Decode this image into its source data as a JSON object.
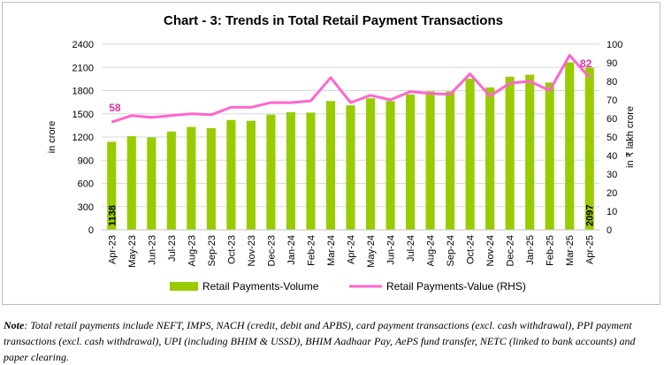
{
  "chart_data": {
    "type": "bar+line",
    "title": "Chart - 3: Trends in Total Retail Payment Transactions",
    "ylabel_left": "in crore",
    "ylabel_right": "in ₹ lakh crore",
    "ylim_left": [
      0,
      2400
    ],
    "yticks_left": [
      0,
      300,
      600,
      900,
      1200,
      1500,
      1800,
      2100,
      2400
    ],
    "ylim_right": [
      0,
      100
    ],
    "yticks_right": [
      0,
      10,
      20,
      30,
      40,
      50,
      60,
      70,
      80,
      90,
      100
    ],
    "grid": true,
    "legend_position": "bottom",
    "categories": [
      "Apr-23",
      "May-23",
      "Jun-23",
      "Jul-23",
      "Aug-23",
      "Sep-23",
      "Oct-23",
      "Nov-23",
      "Dec-23",
      "Jan-24",
      "Feb-24",
      "Mar-24",
      "Apr-24",
      "May-24",
      "Jun-24",
      "Jul-24",
      "Aug-24",
      "Sep-24",
      "Oct-24",
      "Nov-24",
      "Dec-24",
      "Jan-25",
      "Feb-25",
      "Mar-25",
      "Apr-25"
    ],
    "series": [
      {
        "name": "Retail Payments-Volume",
        "type": "bar",
        "axis": "left",
        "color": "#99cc00",
        "values": [
          1138,
          1210,
          1195,
          1270,
          1330,
          1315,
          1420,
          1410,
          1490,
          1520,
          1515,
          1665,
          1610,
          1700,
          1665,
          1750,
          1790,
          1790,
          1955,
          1840,
          1980,
          2005,
          1905,
          2165,
          2097
        ]
      },
      {
        "name": "Retail Payments-Value (RHS)",
        "type": "line",
        "axis": "right",
        "color": "#ff66cc",
        "values": [
          58,
          61.5,
          60.5,
          61.5,
          62.5,
          62,
          66,
          66,
          68.5,
          68.5,
          69.5,
          82,
          68.5,
          72.5,
          70,
          74.5,
          73.5,
          73,
          84,
          72,
          79,
          80,
          75,
          94,
          82
        ]
      }
    ],
    "data_labels": {
      "volume_first": "1138",
      "volume_last": "2097",
      "value_first": "58",
      "value_last": "82"
    }
  },
  "note": {
    "label": "Note",
    "text": ": Total retail payments include NEFT, IMPS, NACH (credit, debit and APBS), card payment transactions (excl. cash withdrawal), PPI payment transactions (excl. cash withdrawal), UPI (including BHIM & USSD), BHIM Aadhaar Pay, AePS fund transfer, NETC (linked to bank accounts) and paper clearing."
  }
}
